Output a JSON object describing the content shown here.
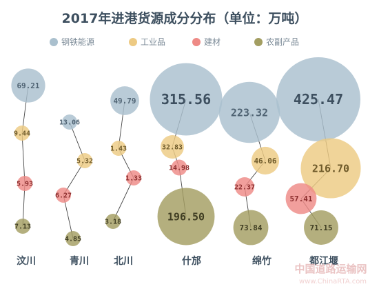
{
  "chart_data": {
    "type": "bubble",
    "title": "2017年进港货源成分分布（单位：万吨）",
    "legend": [
      "钢铁能源",
      "工业品",
      "建材",
      "农副产品"
    ],
    "legend_position": "top",
    "grid": false,
    "categories": [
      "汶川",
      "青川",
      "北川",
      "什邡",
      "绵竹",
      "都江堰"
    ],
    "series": [
      {
        "name": "钢铁能源",
        "color": "#aac0ce",
        "values": [
          69.21,
          13.06,
          49.79,
          315.56,
          223.32,
          425.47
        ]
      },
      {
        "name": "工业品",
        "color": "#edca83",
        "values": [
          9.44,
          5.32,
          1.43,
          32.83,
          46.06,
          216.7
        ]
      },
      {
        "name": "建材",
        "color": "#ee8a86",
        "values": [
          5.93,
          6.27,
          1.33,
          14.98,
          22.37,
          57.41
        ]
      },
      {
        "name": "农副产品",
        "color": "#a39e62",
        "values": [
          7.13,
          4.85,
          3.18,
          196.5,
          73.84,
          71.15
        ]
      }
    ]
  },
  "watermark": {
    "main": "中国道路运输网",
    "sub": "www.ChinaRTA.com"
  }
}
